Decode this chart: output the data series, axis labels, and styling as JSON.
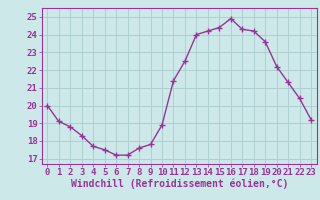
{
  "x": [
    0,
    1,
    2,
    3,
    4,
    5,
    6,
    7,
    8,
    9,
    10,
    11,
    12,
    13,
    14,
    15,
    16,
    17,
    18,
    19,
    20,
    21,
    22,
    23
  ],
  "y": [
    20.0,
    19.1,
    18.8,
    18.3,
    17.7,
    17.5,
    17.2,
    17.2,
    17.6,
    17.8,
    18.9,
    21.4,
    22.5,
    24.0,
    24.2,
    24.4,
    24.9,
    24.3,
    24.2,
    23.6,
    22.2,
    21.3,
    20.4,
    19.2
  ],
  "line_color": "#993399",
  "marker": "+",
  "marker_size": 4,
  "bg_color": "#cce8e8",
  "grid_color": "#aacccc",
  "tick_color": "#993399",
  "label_color": "#993399",
  "xlabel": "Windchill (Refroidissement éolien,°C)",
  "ylabel_ticks": [
    17,
    18,
    19,
    20,
    21,
    22,
    23,
    24,
    25
  ],
  "xtick_labels": [
    "0",
    "1",
    "2",
    "3",
    "4",
    "5",
    "6",
    "7",
    "8",
    "9",
    "10",
    "11",
    "12",
    "13",
    "14",
    "15",
    "16",
    "17",
    "18",
    "19",
    "20",
    "21",
    "22",
    "23"
  ],
  "ylim": [
    16.7,
    25.5
  ],
  "xlim": [
    -0.5,
    23.5
  ],
  "line_width": 1.0,
  "font_size": 6.5,
  "xlabel_font_size": 7.0
}
